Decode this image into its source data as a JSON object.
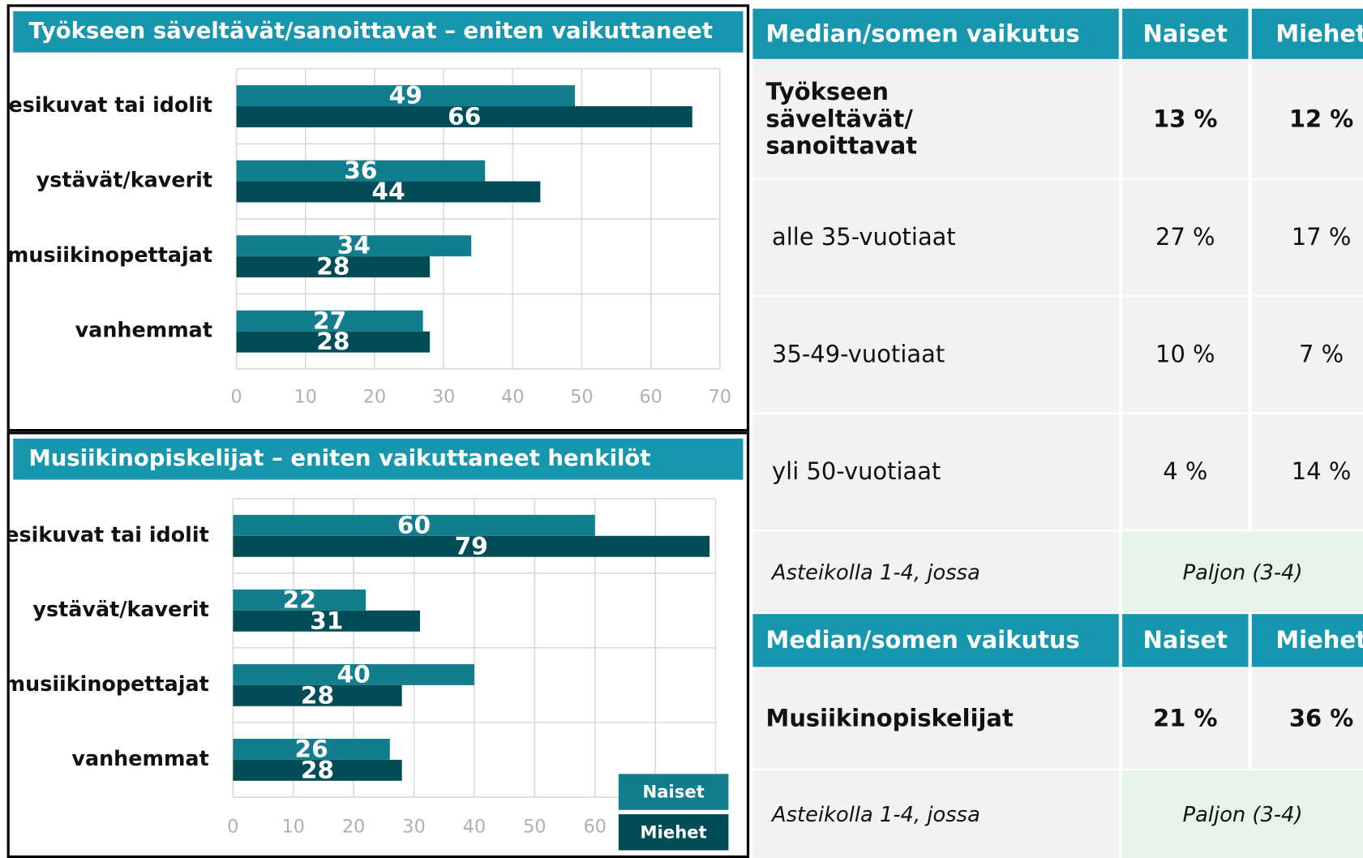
{
  "chart_data": [
    {
      "type": "bar",
      "orientation": "horizontal",
      "title": "Työkseen säveltävät/sanoittavat –  eniten vaikuttaneet",
      "categories": [
        "esikuvat tai idolit",
        "ystävät/kaverit",
        "musiikinopettajat",
        "vanhemmat"
      ],
      "series": [
        {
          "color": "#127e8d",
          "values": [
            49,
            36,
            34,
            27
          ]
        },
        {
          "color": "#024c58",
          "values": [
            66,
            44,
            28,
            28
          ]
        }
      ],
      "xlim": [
        0,
        70
      ],
      "xticks": [
        0,
        10,
        20,
        30,
        40,
        50,
        60,
        70
      ],
      "grid": true
    },
    {
      "type": "bar",
      "orientation": "horizontal",
      "title": "Musiikinopiskelijat – eniten vaikuttaneet henkilöt",
      "categories": [
        "esikuvat tai idolit",
        "ystävät/kaverit",
        "musiikinopettajat",
        "vanhemmat"
      ],
      "series": [
        {
          "name": "Naiset",
          "color": "#127e8d",
          "values": [
            60,
            22,
            40,
            26
          ]
        },
        {
          "name": "Miehet",
          "color": "#024c58",
          "values": [
            79,
            31,
            28,
            28
          ]
        }
      ],
      "xlim": [
        0,
        80
      ],
      "xticks": [
        0,
        10,
        20,
        30,
        40,
        50,
        60,
        70,
        80
      ],
      "grid": true,
      "legend": "lower right"
    }
  ],
  "tables": [
    {
      "header": [
        "Median/somen vaikutus",
        "Naiset",
        "Miehet"
      ],
      "rows": [
        [
          "Työkseen säveltävät/ sanoittavat",
          "13 %",
          "12 %"
        ],
        [
          "alle 35-vuotiaat",
          "27 %",
          "17 %"
        ],
        [
          "35-49-vuotiaat",
          "10 %",
          "7 %"
        ],
        [
          "yli 50-vuotiaat",
          "4 %",
          "14 %"
        ]
      ],
      "note": [
        "Asteikolla 1-4, jossa",
        "Paljon (3-4)"
      ]
    },
    {
      "header": [
        "Median/somen vaikutus",
        "Naiset",
        "Miehet"
      ],
      "rows": [
        [
          "Musiikinopiskelijat",
          "21 %",
          "36 %"
        ]
      ],
      "note": [
        "Asteikolla 1-4, jossa",
        "Paljon (3-4)"
      ]
    }
  ]
}
